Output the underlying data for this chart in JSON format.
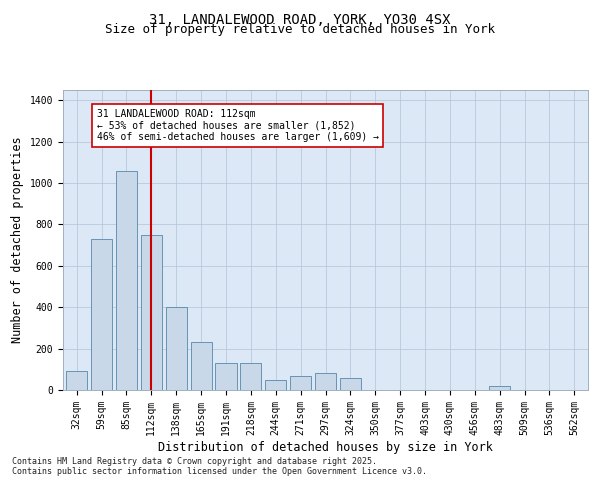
{
  "title_line1": "31, LANDALEWOOD ROAD, YORK, YO30 4SX",
  "title_line2": "Size of property relative to detached houses in York",
  "xlabel": "Distribution of detached houses by size in York",
  "ylabel": "Number of detached properties",
  "categories": [
    "32sqm",
    "59sqm",
    "85sqm",
    "112sqm",
    "138sqm",
    "165sqm",
    "191sqm",
    "218sqm",
    "244sqm",
    "271sqm",
    "297sqm",
    "324sqm",
    "350sqm",
    "377sqm",
    "403sqm",
    "430sqm",
    "456sqm",
    "483sqm",
    "509sqm",
    "536sqm",
    "562sqm"
  ],
  "values": [
    90,
    730,
    1060,
    750,
    400,
    230,
    130,
    130,
    50,
    70,
    80,
    60,
    0,
    0,
    0,
    0,
    0,
    20,
    0,
    0,
    0
  ],
  "bar_color": "#c8d8e8",
  "bar_edge_color": "#5588aa",
  "highlight_bar_index": 3,
  "highlight_line_color": "#cc0000",
  "annotation_text": "31 LANDALEWOOD ROAD: 112sqm\n← 53% of detached houses are smaller (1,852)\n46% of semi-detached houses are larger (1,609) →",
  "annotation_box_color": "#ffffff",
  "annotation_box_edge": "#cc0000",
  "ylim": [
    0,
    1450
  ],
  "yticks": [
    0,
    200,
    400,
    600,
    800,
    1000,
    1200,
    1400
  ],
  "background_color": "#dce8f5",
  "footer_line1": "Contains HM Land Registry data © Crown copyright and database right 2025.",
  "footer_line2": "Contains public sector information licensed under the Open Government Licence v3.0.",
  "title_fontsize": 10,
  "subtitle_fontsize": 9,
  "tick_fontsize": 7,
  "label_fontsize": 8.5,
  "footer_fontsize": 6,
  "ann_fontsize": 7
}
